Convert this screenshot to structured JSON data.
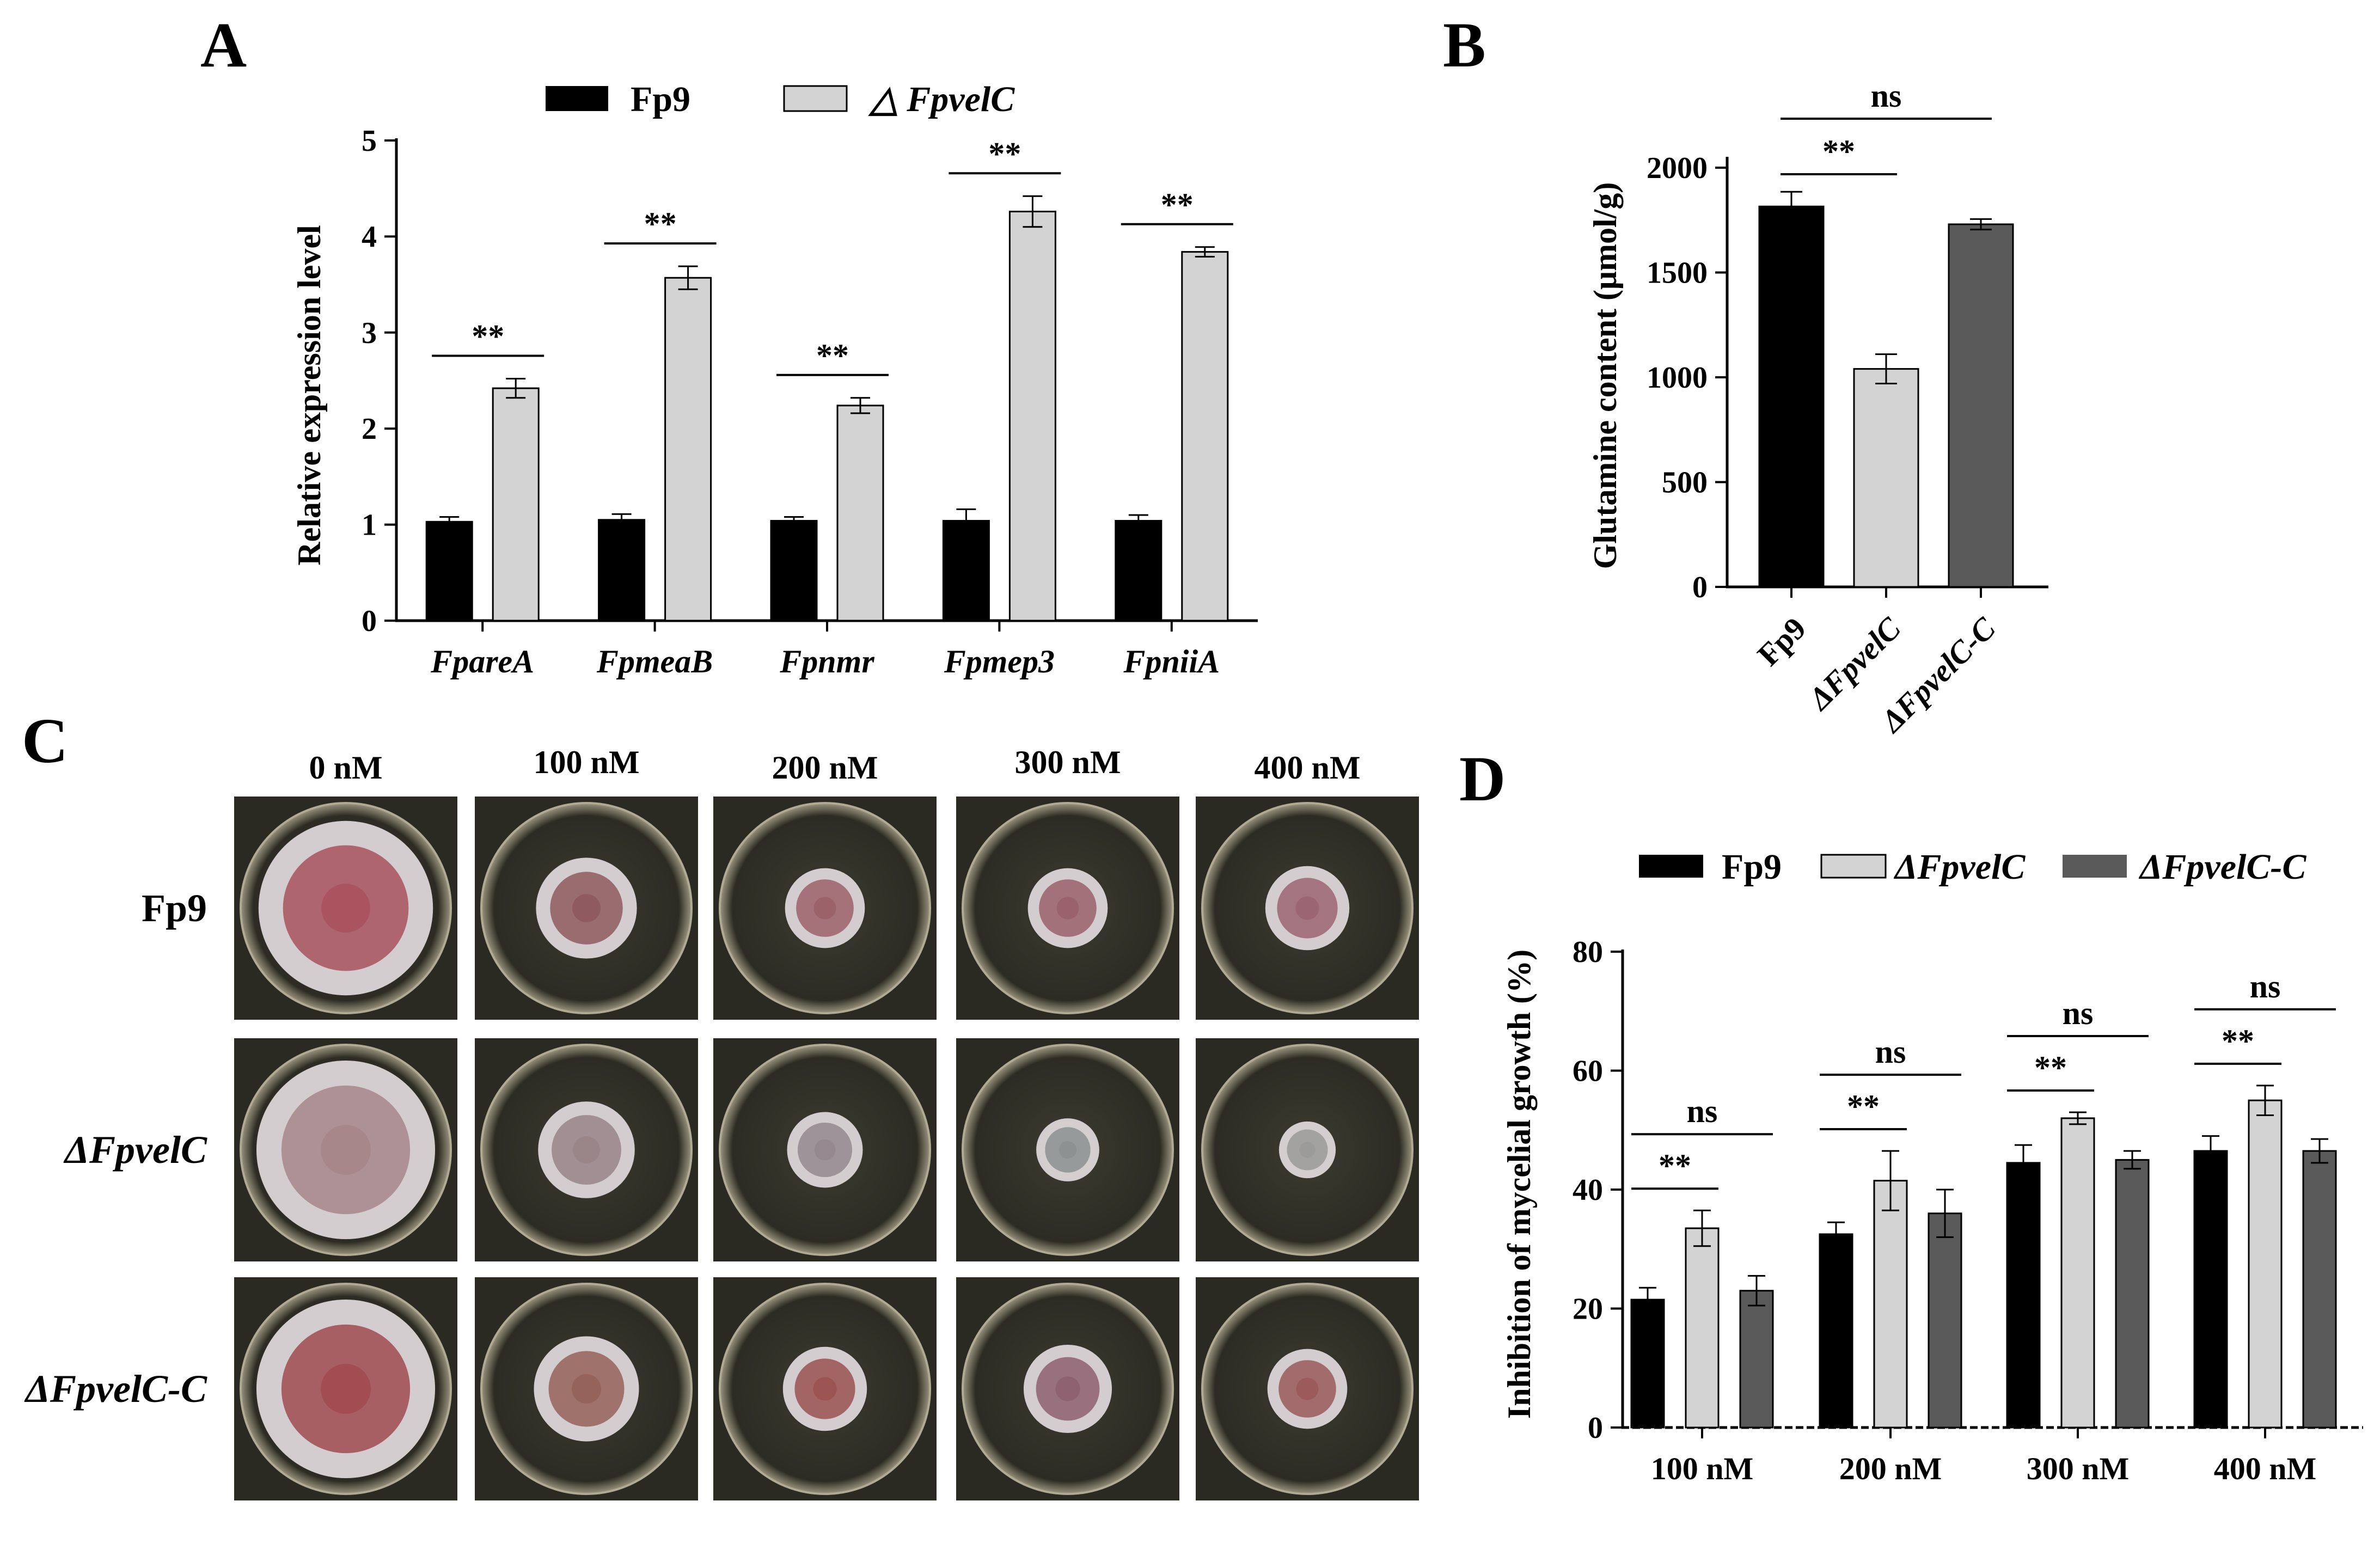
{
  "panel_letters": [
    "A",
    "B",
    "C",
    "D"
  ],
  "colors": {
    "fp9": "#000000",
    "mutant": "#d3d3d3",
    "complemented": "#5a5a5a",
    "plate_bg": "#2a2a22"
  },
  "chart_data": [
    {
      "id": "A",
      "type": "bar",
      "categories": [
        "FpareA",
        "FpmeaB",
        "Fpnmr",
        "Fpmep3",
        "FpniiA"
      ],
      "series": [
        {
          "name": "Fp9",
          "values": [
            1.03,
            1.05,
            1.04,
            1.04,
            1.04
          ],
          "errors": [
            0.05,
            0.06,
            0.04,
            0.12,
            0.06
          ]
        },
        {
          "name": "△ FpvelC",
          "values": [
            2.42,
            3.57,
            2.24,
            4.26,
            3.84
          ],
          "errors": [
            0.1,
            0.12,
            0.08,
            0.16,
            0.05
          ]
        }
      ],
      "ylabel": "Relative expression level",
      "xlabel": "",
      "ylim": [
        0,
        5
      ],
      "yticks": [
        0,
        1,
        2,
        3,
        4,
        5
      ],
      "significance": [
        "**",
        "**",
        "**",
        "**",
        "**"
      ],
      "legend": "top"
    },
    {
      "id": "B",
      "type": "bar",
      "categories": [
        "Fp9",
        "ΔFpvelC",
        "ΔFpvelC-C"
      ],
      "values": [
        1815,
        1040,
        1730
      ],
      "errors": [
        70,
        70,
        25
      ],
      "ylabel": "Glutamine content (μmol/g)",
      "xlabel": "",
      "ylim": [
        0,
        2000
      ],
      "yticks": [
        0,
        500,
        1000,
        1500,
        2000
      ],
      "comparisons": [
        {
          "from": 0,
          "to": 1,
          "label": "**"
        },
        {
          "from": 0,
          "to": 2,
          "label": "ns"
        }
      ]
    },
    {
      "id": "D",
      "type": "bar",
      "categories": [
        "100 nM",
        "200 nM",
        "300 nM",
        "400 nM"
      ],
      "series": [
        {
          "name": "Fp9",
          "values": [
            21.5,
            32.5,
            44.5,
            46.5
          ],
          "errors": [
            2.0,
            2.0,
            3.0,
            2.5
          ]
        },
        {
          "name": "ΔFpvelC",
          "values": [
            33.5,
            41.5,
            52.0,
            55.0
          ],
          "errors": [
            3.0,
            5.0,
            1.0,
            2.5
          ]
        },
        {
          "name": "ΔFpvelC-C",
          "values": [
            23.0,
            36.0,
            45.0,
            46.5
          ],
          "errors": [
            2.5,
            4.0,
            1.5,
            2.0
          ]
        }
      ],
      "ylabel": "Inhibition of mycelial growth (%)",
      "xlabel": "",
      "ylim": [
        0,
        80
      ],
      "yticks": [
        0,
        20,
        40,
        60,
        80
      ],
      "comparisons": [
        {
          "from": 0,
          "to": 1,
          "label": "**"
        },
        {
          "from": 0,
          "to": 2,
          "label": "ns"
        }
      ],
      "legend": "top"
    }
  ],
  "plates": {
    "columns": [
      "0 nM",
      "100 nM",
      "200 nM",
      "300 nM",
      "400 nM"
    ],
    "rows": [
      "Fp9",
      "ΔFpvelC",
      "ΔFpvelC-C"
    ],
    "colony_diameter_fraction": [
      [
        0.83,
        0.48,
        0.38,
        0.38,
        0.4
      ],
      [
        0.85,
        0.46,
        0.36,
        0.3,
        0.27
      ],
      [
        0.85,
        0.5,
        0.4,
        0.42,
        0.38
      ]
    ],
    "colony_tint": [
      [
        "#a8525c",
        "#8e5a5e",
        "#9b6168",
        "#99606a",
        "#9b6472"
      ],
      [
        "#a7868a",
        "#998488",
        "#94888e",
        "#8c9090",
        "#9a9a98"
      ],
      [
        "#a04b50",
        "#95625a",
        "#9a5250",
        "#8e6070",
        "#9a5a5a"
      ]
    ]
  }
}
